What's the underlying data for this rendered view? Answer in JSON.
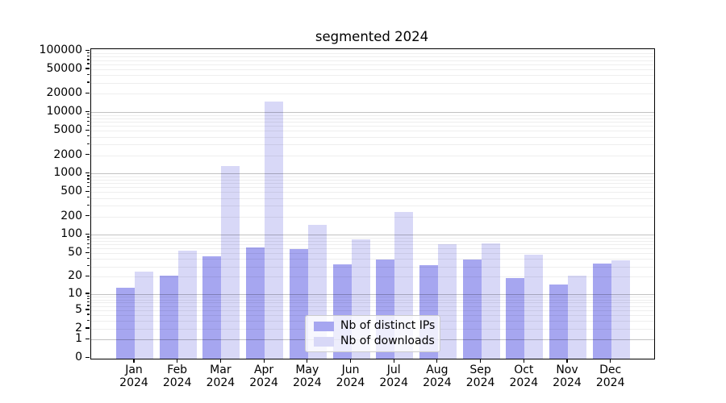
{
  "title": "segmented 2024",
  "legend": {
    "items": [
      {
        "label": "Nb of distinct IPs",
        "color": "#a6a6f0"
      },
      {
        "label": "Nb of downloads",
        "color": "#d8d8f7"
      }
    ]
  },
  "chart_data": {
    "type": "bar",
    "title": "segmented 2024",
    "xlabel": "",
    "ylabel": "",
    "categories": [
      {
        "line1": "Jan",
        "line2": "2024"
      },
      {
        "line1": "Feb",
        "line2": "2024"
      },
      {
        "line1": "Mar",
        "line2": "2024"
      },
      {
        "line1": "Apr",
        "line2": "2024"
      },
      {
        "line1": "May",
        "line2": "2024"
      },
      {
        "line1": "Jun",
        "line2": "2024"
      },
      {
        "line1": "Jul",
        "line2": "2024"
      },
      {
        "line1": "Aug",
        "line2": "2024"
      },
      {
        "line1": "Sep",
        "line2": "2024"
      },
      {
        "line1": "Oct",
        "line2": "2024"
      },
      {
        "line1": "Nov",
        "line2": "2024"
      },
      {
        "line1": "Dec",
        "line2": "2024"
      }
    ],
    "series": [
      {
        "name": "Nb of distinct IPs",
        "color": "#a6a6f0",
        "values": [
          13,
          21,
          45,
          62,
          58,
          33,
          40,
          32,
          40,
          19,
          15,
          34
        ]
      },
      {
        "name": "Nb of downloads",
        "color": "#d8d8f7",
        "values": [
          25,
          56,
          1350,
          15000,
          145,
          85,
          240,
          71,
          74,
          48,
          21,
          38
        ]
      }
    ],
    "yscale": "log1p",
    "ylim": [
      0,
      100000
    ],
    "yticks": [
      0,
      1,
      2,
      5,
      10,
      20,
      50,
      100,
      200,
      500,
      1000,
      2000,
      5000,
      10000,
      20000,
      50000,
      100000
    ],
    "grid": true,
    "legend_position": "lower center"
  }
}
